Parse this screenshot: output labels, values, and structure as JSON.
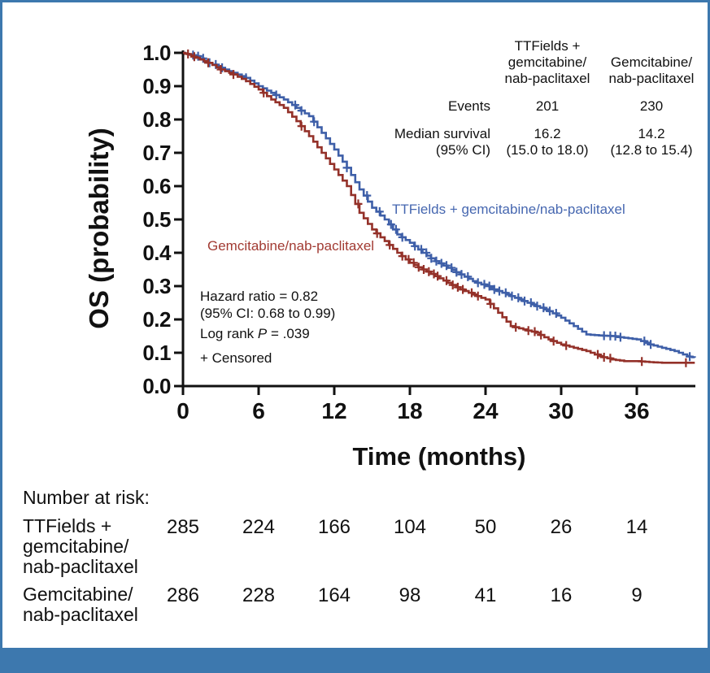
{
  "colors": {
    "frame_and_footer": "#3d78ae",
    "axis": "#111111",
    "ttfields_blue": "#3e5fa8",
    "gemcitabine_red": "#943129"
  },
  "chart_data": {
    "type": "line",
    "subtype": "kaplan-meier-step",
    "title": "",
    "xlabel": "Time (months)",
    "ylabel": "OS (probability)",
    "xlim": [
      0,
      40.6
    ],
    "ylim": [
      0,
      1.0
    ],
    "xticks": [
      "0",
      "6",
      "12",
      "18",
      "24",
      "30",
      "36"
    ],
    "yticks": [
      "1.0",
      "0.9",
      "0.8",
      "0.7",
      "0.6",
      "0.5",
      "0.4",
      "0.3",
      "0.2",
      "0.1",
      "0.0"
    ],
    "grid": false,
    "series": [
      {
        "name": "TTFields + gemcitabine/nab-paclitaxel",
        "color": "#3e5fa8",
        "label_color": "#4667b0",
        "points": [
          [
            0,
            1.0
          ],
          [
            0.5,
            0.995
          ],
          [
            1,
            0.99
          ],
          [
            2,
            0.97
          ],
          [
            3,
            0.955
          ],
          [
            4,
            0.94
          ],
          [
            5,
            0.925
          ],
          [
            6,
            0.9
          ],
          [
            7,
            0.88
          ],
          [
            8,
            0.86
          ],
          [
            9,
            0.835
          ],
          [
            10,
            0.81
          ],
          [
            11,
            0.76
          ],
          [
            12,
            0.71
          ],
          [
            13,
            0.655
          ],
          [
            14,
            0.59
          ],
          [
            15,
            0.535
          ],
          [
            16,
            0.5
          ],
          [
            17,
            0.455
          ],
          [
            18,
            0.43
          ],
          [
            19,
            0.4
          ],
          [
            20,
            0.375
          ],
          [
            21,
            0.355
          ],
          [
            22,
            0.335
          ],
          [
            23,
            0.315
          ],
          [
            24,
            0.3
          ],
          [
            25,
            0.285
          ],
          [
            26,
            0.27
          ],
          [
            27,
            0.255
          ],
          [
            28,
            0.24
          ],
          [
            29,
            0.225
          ],
          [
            30,
            0.205
          ],
          [
            31,
            0.18
          ],
          [
            32,
            0.155
          ],
          [
            33,
            0.152
          ],
          [
            34,
            0.15
          ],
          [
            35,
            0.145
          ],
          [
            36,
            0.14
          ],
          [
            37,
            0.125
          ],
          [
            38,
            0.115
          ],
          [
            39,
            0.105
          ],
          [
            40,
            0.09
          ],
          [
            40.6,
            0.085
          ]
        ],
        "censor_times": [
          0.8,
          1.2,
          1.6,
          2.1,
          2.6,
          3.1,
          5.0,
          7.4,
          8.9,
          9.4,
          10.4,
          13.0,
          14.6,
          15.6,
          16.5,
          16.9,
          17.4,
          18.4,
          18.9,
          19.3,
          19.7,
          20.1,
          20.5,
          20.9,
          21.3,
          21.7,
          22.1,
          22.6,
          23.4,
          23.9,
          24.3,
          24.7,
          25.1,
          25.6,
          26.1,
          26.6,
          27.1,
          27.6,
          28.1,
          28.6,
          29.1,
          29.6,
          33.4,
          33.9,
          34.3,
          34.7,
          36.6,
          37.1,
          40.2
        ]
      },
      {
        "name": "Gemcitabine/nab-paclitaxel",
        "color": "#943129",
        "label_color": "#a23b33",
        "points": [
          [
            0,
            1.0
          ],
          [
            0.5,
            0.995
          ],
          [
            1,
            0.985
          ],
          [
            2,
            0.97
          ],
          [
            3,
            0.95
          ],
          [
            4,
            0.935
          ],
          [
            5,
            0.915
          ],
          [
            6,
            0.89
          ],
          [
            7,
            0.86
          ],
          [
            8,
            0.835
          ],
          [
            9,
            0.795
          ],
          [
            10,
            0.75
          ],
          [
            11,
            0.7
          ],
          [
            12,
            0.65
          ],
          [
            13,
            0.6
          ],
          [
            14,
            0.52
          ],
          [
            15,
            0.47
          ],
          [
            16,
            0.435
          ],
          [
            17,
            0.4
          ],
          [
            18,
            0.37
          ],
          [
            19,
            0.35
          ],
          [
            20,
            0.33
          ],
          [
            21,
            0.31
          ],
          [
            22,
            0.29
          ],
          [
            23,
            0.275
          ],
          [
            24,
            0.26
          ],
          [
            25,
            0.22
          ],
          [
            26,
            0.18
          ],
          [
            27,
            0.17
          ],
          [
            28,
            0.16
          ],
          [
            29,
            0.14
          ],
          [
            30,
            0.125
          ],
          [
            31,
            0.115
          ],
          [
            32,
            0.105
          ],
          [
            33,
            0.09
          ],
          [
            34,
            0.08
          ],
          [
            35,
            0.075
          ],
          [
            36,
            0.075
          ],
          [
            37,
            0.072
          ],
          [
            38,
            0.07
          ],
          [
            39,
            0.07
          ],
          [
            40,
            0.07
          ],
          [
            40.6,
            0.07
          ]
        ],
        "censor_times": [
          0.4,
          0.9,
          2.0,
          3.0,
          4.0,
          6.4,
          9.4,
          13.9,
          15.4,
          16.4,
          17.4,
          17.9,
          18.3,
          18.7,
          19.1,
          19.5,
          19.9,
          20.2,
          20.9,
          21.4,
          21.8,
          22.2,
          22.9,
          23.4,
          24.4,
          26.4,
          27.4,
          27.9,
          28.4,
          29.4,
          30.4,
          32.9,
          33.4,
          33.9,
          36.4,
          39.9
        ]
      }
    ],
    "stats_table": {
      "col_headers": [
        "TTFields +\ngemcitabine/\nnab-paclitaxel",
        "Gemcitabine/\nnab-paclitaxel"
      ],
      "rows": [
        {
          "label": "Events",
          "values": [
            "201",
            "230"
          ]
        },
        {
          "label": "Median survival\n(95% CI)",
          "values": [
            "16.2\n(15.0 to 18.0)",
            "14.2\n(12.8 to 15.4)"
          ]
        }
      ]
    },
    "annotations": {
      "hazard_ratio": "Hazard ratio = 0.82",
      "ci": "(95% CI: 0.68 to 0.99)",
      "logrank_prefix": "Log rank ",
      "logrank_p": "P",
      "logrank_value": " = .039",
      "censored": "+ Censored"
    },
    "risk_table": {
      "title": "Number at risk:",
      "rows": [
        {
          "label": "TTFields +\ngemcitabine/\nnab-paclitaxel",
          "values": [
            "285",
            "224",
            "166",
            "104",
            "50",
            "26",
            "14"
          ]
        },
        {
          "label": "Gemcitabine/\nnab-paclitaxel",
          "values": [
            "286",
            "228",
            "164",
            "98",
            "41",
            "16",
            "9"
          ]
        }
      ]
    }
  }
}
